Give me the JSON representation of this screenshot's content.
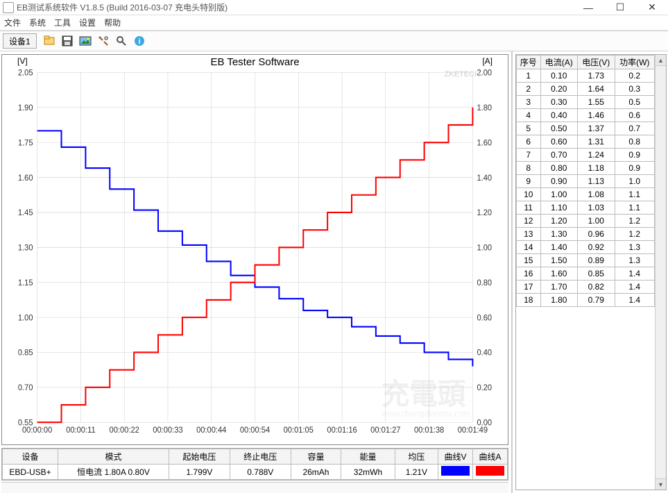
{
  "window": {
    "title": "EB测试系统软件 V1.8.5 (Build 2016-03-07 充电头特别版)"
  },
  "menu": {
    "items": [
      "文件",
      "系统",
      "工具",
      "设置",
      "帮助"
    ]
  },
  "toolbar": {
    "tab_label": "设备1"
  },
  "chart": {
    "title": "EB Tester Software",
    "y_left_label": "[V]",
    "y_right_label": "[A]",
    "watermark_tr": "ZKETECH",
    "grid_color": "#cccccc",
    "line_v_color": "#0000ff",
    "line_a_color": "#ff0000",
    "background": "#ffffff",
    "x_ticks": [
      "00:00:00",
      "00:00:11",
      "00:00:22",
      "00:00:33",
      "00:00:44",
      "00:00:54",
      "00:01:05",
      "00:01:16",
      "00:01:27",
      "00:01:38",
      "00:01:49"
    ],
    "y_left_ticks": [
      0.55,
      0.7,
      0.85,
      1.0,
      1.15,
      1.3,
      1.45,
      1.6,
      1.75,
      1.9,
      2.05
    ],
    "y_right_ticks": [
      0.0,
      0.2,
      0.4,
      0.6,
      0.8,
      1.0,
      1.2,
      1.4,
      1.6,
      1.8,
      2.0
    ],
    "v_series": [
      1.8,
      1.73,
      1.64,
      1.55,
      1.46,
      1.37,
      1.31,
      1.24,
      1.18,
      1.13,
      1.08,
      1.03,
      1.0,
      0.96,
      0.92,
      0.89,
      0.85,
      0.82,
      0.79
    ],
    "a_series": [
      0.0,
      0.1,
      0.2,
      0.3,
      0.4,
      0.5,
      0.6,
      0.7,
      0.8,
      0.9,
      1.0,
      1.1,
      1.2,
      1.3,
      1.4,
      1.5,
      1.6,
      1.7,
      1.8
    ]
  },
  "summary": {
    "headers": [
      "设备",
      "模式",
      "起始电压",
      "终止电压",
      "容量",
      "能量",
      "均压",
      "曲线V",
      "曲线A"
    ],
    "device": "EBD-USB+",
    "mode": "恒电流  1.80A  0.80V",
    "start_v": "1.799V",
    "end_v": "0.788V",
    "capacity": "26mAh",
    "energy": "32mWh",
    "avg_v": "1.21V",
    "curve_v_color": "#0000ff",
    "curve_a_color": "#ff0000"
  },
  "data_table": {
    "headers": [
      "序号",
      "电流(A)",
      "电压(V)",
      "功率(W)"
    ],
    "rows": [
      [
        "1",
        "0.10",
        "1.73",
        "0.2"
      ],
      [
        "2",
        "0.20",
        "1.64",
        "0.3"
      ],
      [
        "3",
        "0.30",
        "1.55",
        "0.5"
      ],
      [
        "4",
        "0.40",
        "1.46",
        "0.6"
      ],
      [
        "5",
        "0.50",
        "1.37",
        "0.7"
      ],
      [
        "6",
        "0.60",
        "1.31",
        "0.8"
      ],
      [
        "7",
        "0.70",
        "1.24",
        "0.9"
      ],
      [
        "8",
        "0.80",
        "1.18",
        "0.9"
      ],
      [
        "9",
        "0.90",
        "1.13",
        "1.0"
      ],
      [
        "10",
        "1.00",
        "1.08",
        "1.1"
      ],
      [
        "11",
        "1.10",
        "1.03",
        "1.1"
      ],
      [
        "12",
        "1.20",
        "1.00",
        "1.2"
      ],
      [
        "13",
        "1.30",
        "0.96",
        "1.2"
      ],
      [
        "14",
        "1.40",
        "0.92",
        "1.3"
      ],
      [
        "15",
        "1.50",
        "0.89",
        "1.3"
      ],
      [
        "16",
        "1.60",
        "0.85",
        "1.4"
      ],
      [
        "17",
        "1.70",
        "0.82",
        "1.4"
      ],
      [
        "18",
        "1.80",
        "0.79",
        "1.4"
      ]
    ]
  }
}
